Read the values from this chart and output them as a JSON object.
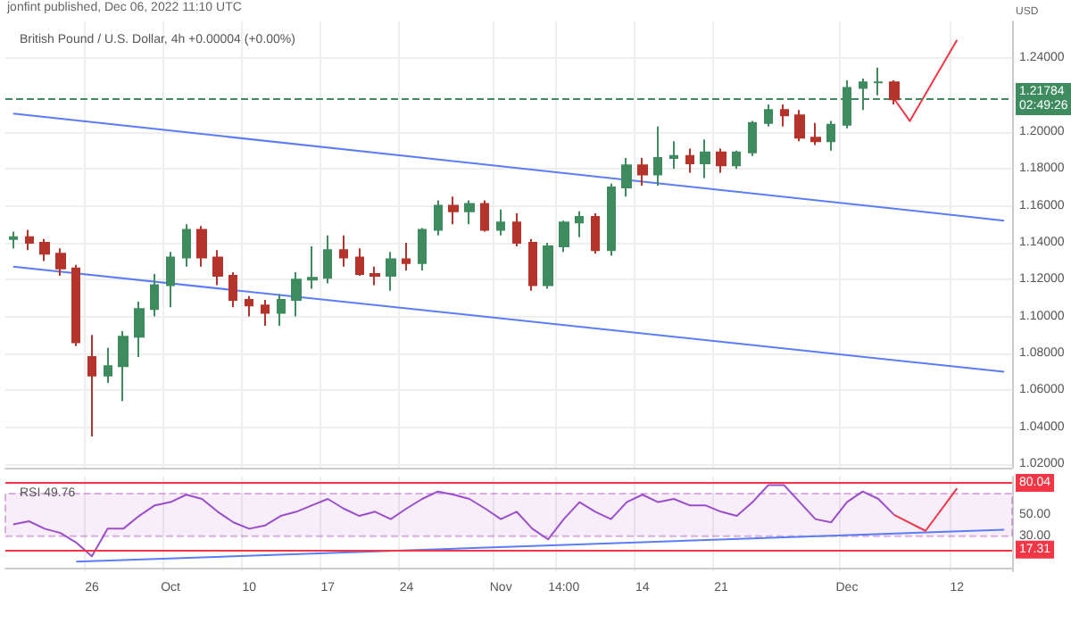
{
  "chart_data": [
    {
      "type": "candlestick",
      "title": "British Pound / U.S. Dollar, 4h +0.00004 (+0.00%)",
      "annotations": [
        "jonfint published, Dec 06, 2022 11:10 UTC"
      ],
      "ylabel": "USD",
      "categories": [
        null,
        null,
        null,
        null,
        null,
        null,
        null,
        null,
        null,
        null,
        null,
        null,
        null,
        null,
        null,
        null,
        null,
        null,
        null,
        null,
        null,
        null,
        null,
        null,
        null,
        null,
        null,
        null,
        null,
        null,
        null,
        null,
        null,
        null,
        null,
        null,
        null,
        null,
        null,
        null,
        null,
        null,
        null,
        null,
        null,
        null,
        null,
        null,
        null,
        null,
        null,
        null,
        null,
        null,
        null,
        null,
        null,
        null,
        null,
        null,
        null,
        null,
        null,
        null
      ],
      "ohlc": [
        [
          1.142,
          1.146,
          1.137,
          1.143
        ],
        [
          1.143,
          1.147,
          1.136,
          1.14
        ],
        [
          1.14,
          1.142,
          1.13,
          1.134
        ],
        [
          1.134,
          1.137,
          1.122,
          1.126
        ],
        [
          1.126,
          1.128,
          1.084,
          1.086
        ],
        [
          1.078,
          1.09,
          1.035,
          1.068
        ],
        [
          1.068,
          1.083,
          1.064,
          1.073
        ],
        [
          1.073,
          1.092,
          1.054,
          1.089
        ],
        [
          1.089,
          1.108,
          1.078,
          1.104
        ],
        [
          1.104,
          1.123,
          1.1,
          1.117
        ],
        [
          1.117,
          1.135,
          1.105,
          1.132
        ],
        [
          1.132,
          1.15,
          1.127,
          1.147
        ],
        [
          1.147,
          1.149,
          1.127,
          1.132
        ],
        [
          1.132,
          1.136,
          1.117,
          1.122
        ],
        [
          1.122,
          1.124,
          1.105,
          1.109
        ],
        [
          1.109,
          1.111,
          1.1,
          1.106
        ],
        [
          1.106,
          1.109,
          1.095,
          1.102
        ],
        [
          1.102,
          1.112,
          1.095,
          1.109
        ],
        [
          1.109,
          1.124,
          1.1,
          1.12
        ],
        [
          1.12,
          1.138,
          1.115,
          1.121
        ],
        [
          1.121,
          1.144,
          1.118,
          1.136
        ],
        [
          1.136,
          1.144,
          1.127,
          1.132
        ],
        [
          1.132,
          1.137,
          1.122,
          1.123
        ],
        [
          1.123,
          1.127,
          1.117,
          1.122
        ],
        [
          1.122,
          1.135,
          1.114,
          1.131
        ],
        [
          1.131,
          1.14,
          1.125,
          1.129
        ],
        [
          1.129,
          1.148,
          1.125,
          1.147
        ],
        [
          1.147,
          1.163,
          1.144,
          1.16
        ],
        [
          1.16,
          1.165,
          1.15,
          1.157
        ],
        [
          1.157,
          1.163,
          1.15,
          1.161
        ],
        [
          1.161,
          1.163,
          1.146,
          1.147
        ],
        [
          1.147,
          1.158,
          1.144,
          1.151
        ],
        [
          1.151,
          1.156,
          1.138,
          1.14
        ],
        [
          1.14,
          1.142,
          1.114,
          1.117
        ],
        [
          1.117,
          1.14,
          1.115,
          1.138
        ],
        [
          1.138,
          1.152,
          1.135,
          1.151
        ],
        [
          1.151,
          1.157,
          1.143,
          1.154
        ],
        [
          1.154,
          1.156,
          1.134,
          1.136
        ],
        [
          1.136,
          1.172,
          1.133,
          1.17
        ],
        [
          1.17,
          1.186,
          1.165,
          1.182
        ],
        [
          1.182,
          1.186,
          1.171,
          1.177
        ],
        [
          1.177,
          1.203,
          1.171,
          1.186
        ],
        [
          1.186,
          1.195,
          1.18,
          1.187
        ],
        [
          1.187,
          1.191,
          1.178,
          1.183
        ],
        [
          1.183,
          1.196,
          1.175,
          1.189
        ],
        [
          1.189,
          1.191,
          1.178,
          1.182
        ],
        [
          1.182,
          1.19,
          1.18,
          1.189
        ],
        [
          1.189,
          1.206,
          1.187,
          1.205
        ],
        [
          1.205,
          1.215,
          1.203,
          1.212
        ],
        [
          1.212,
          1.215,
          1.203,
          1.209
        ],
        [
          1.209,
          1.212,
          1.195,
          1.197
        ],
        [
          1.197,
          1.205,
          1.193,
          1.195
        ],
        [
          1.195,
          1.206,
          1.19,
          1.204
        ],
        [
          1.204,
          1.228,
          1.202,
          1.224
        ],
        [
          1.224,
          1.229,
          1.212,
          1.227
        ],
        [
          1.227,
          1.235,
          1.22,
          1.227
        ],
        [
          1.227,
          1.228,
          1.215,
          1.2178
        ],
        null,
        null,
        null,
        null,
        null,
        null,
        null
      ],
      "colors": [
        "#3d8b5f",
        "#b4342b",
        "#b4342b",
        "#b4342b",
        "#b4342b",
        "#b4342b",
        "#3d8b5f",
        "#3d8b5f",
        "#3d8b5f",
        "#3d8b5f",
        "#3d8b5f",
        "#3d8b5f",
        "#b4342b",
        "#b4342b",
        "#b4342b",
        "#b4342b",
        "#b4342b",
        "#3d8b5f",
        "#3d8b5f",
        "#3d8b5f",
        "#3d8b5f",
        "#b4342b",
        "#b4342b",
        "#b4342b",
        "#3d8b5f",
        "#b4342b",
        "#3d8b5f",
        "#3d8b5f",
        "#b4342b",
        "#3d8b5f",
        "#b4342b",
        "#3d8b5f",
        "#b4342b",
        "#b4342b",
        "#3d8b5f",
        "#3d8b5f",
        "#3d8b5f",
        "#b4342b",
        "#3d8b5f",
        "#3d8b5f",
        "#b4342b",
        "#3d8b5f",
        "#3d8b5f",
        "#b4342b",
        "#3d8b5f",
        "#b4342b",
        "#3d8b5f",
        "#3d8b5f",
        "#3d8b5f",
        "#b4342b",
        "#b4342b",
        "#b4342b",
        "#3d8b5f",
        "#3d8b5f",
        "#3d8b5f",
        "#3d8b5f",
        "#b4342b",
        null,
        null,
        null,
        null,
        null,
        null,
        null
      ],
      "series": [
        {
          "type": "line",
          "color": "#5b7cf7",
          "values": [
            1.21,
            null,
            null,
            null,
            null,
            null,
            null,
            null,
            null,
            null,
            null,
            null,
            null,
            null,
            null,
            null,
            null,
            null,
            null,
            null,
            null,
            null,
            null,
            null,
            null,
            null,
            null,
            null,
            null,
            null,
            null,
            null,
            null,
            null,
            null,
            null,
            null,
            null,
            null,
            null,
            null,
            null,
            null,
            null,
            null,
            null,
            null,
            null,
            null,
            null,
            null,
            null,
            null,
            null,
            null,
            null,
            null,
            null,
            null,
            null,
            null,
            null,
            null,
            1.152
          ]
        },
        {
          "type": "line",
          "color": "#5b7cf7",
          "values": [
            1.127,
            null,
            null,
            null,
            null,
            null,
            null,
            null,
            null,
            null,
            null,
            null,
            null,
            null,
            null,
            null,
            null,
            null,
            null,
            null,
            null,
            null,
            null,
            null,
            null,
            null,
            null,
            null,
            null,
            null,
            null,
            null,
            null,
            null,
            null,
            null,
            null,
            null,
            null,
            null,
            null,
            null,
            null,
            null,
            null,
            null,
            null,
            null,
            null,
            null,
            null,
            null,
            null,
            null,
            null,
            null,
            null,
            null,
            null,
            null,
            null,
            null,
            null,
            1.07
          ]
        },
        {
          "type": "line",
          "color": "#f23645",
          "values": [
            null,
            null,
            null,
            null,
            null,
            null,
            null,
            null,
            null,
            null,
            null,
            null,
            null,
            null,
            null,
            null,
            null,
            null,
            null,
            null,
            null,
            null,
            null,
            null,
            null,
            null,
            null,
            null,
            null,
            null,
            null,
            null,
            null,
            null,
            null,
            null,
            null,
            null,
            null,
            null,
            null,
            null,
            null,
            null,
            null,
            null,
            null,
            null,
            null,
            null,
            null,
            null,
            null,
            null,
            null,
            null,
            1.218,
            1.206,
            null,
            null,
            1.25,
            null,
            null,
            null
          ]
        }
      ],
      "ylim": [
        1.018,
        1.26
      ],
      "yticks": [
        {
          "value": 1.02,
          "label": "1.02000"
        },
        {
          "value": 1.04,
          "label": "1.04000"
        },
        {
          "value": 1.06,
          "label": "1.06000"
        },
        {
          "value": 1.08,
          "label": "1.08000"
        },
        {
          "value": 1.1,
          "label": "1.10000"
        },
        {
          "value": 1.12,
          "label": "1.12000"
        },
        {
          "value": 1.14,
          "label": "1.14000"
        },
        {
          "value": 1.16,
          "label": "1.16000"
        },
        {
          "value": 1.18,
          "label": "1.18000"
        },
        {
          "value": 1.2,
          "label": "1.20000"
        },
        {
          "value": 1.24,
          "label": "1.24000"
        }
      ],
      "ref_lines": [
        {
          "axis": "y",
          "value": 1.21784,
          "label": "1.21784\n02:49:26",
          "color": "#3d8b5f",
          "line_style": "dashed"
        }
      ],
      "grid": true,
      "tick_labels": "y",
      "marker": "none",
      "line_style": "solid"
    },
    {
      "type": "line",
      "title": "RSI 49.76",
      "categories": [
        null,
        null,
        null,
        null,
        null,
        "26",
        null,
        null,
        null,
        null,
        "Oct",
        null,
        null,
        null,
        null,
        "10",
        null,
        null,
        null,
        null,
        "17",
        null,
        null,
        null,
        null,
        "24",
        null,
        null,
        null,
        null,
        null,
        "Nov",
        null,
        null,
        null,
        "14:00",
        null,
        null,
        null,
        null,
        "14",
        null,
        null,
        null,
        null,
        "21",
        null,
        null,
        null,
        null,
        null,
        null,
        null,
        "Dec",
        null,
        null,
        null,
        null,
        null,
        null,
        "12",
        null,
        null,
        null
      ],
      "series": [
        {
          "color": "#9c4dcc",
          "values": [
            41,
            44,
            37,
            33,
            24,
            11,
            37,
            37,
            49,
            59,
            62,
            69,
            65,
            53,
            43,
            37,
            40,
            49,
            53,
            59,
            65,
            56,
            49,
            53,
            46,
            56,
            65,
            72,
            69,
            65,
            56,
            46,
            53,
            37,
            27,
            46,
            62,
            53,
            46,
            62,
            69,
            62,
            65,
            59,
            59,
            53,
            49,
            62,
            78,
            78,
            62,
            46,
            43,
            62,
            72,
            65,
            50,
            null,
            null,
            null,
            null,
            null,
            null,
            null
          ]
        },
        {
          "color": "#5b7cf7",
          "values": [
            null,
            null,
            null,
            null,
            6,
            null,
            null,
            null,
            null,
            null,
            null,
            null,
            null,
            null,
            null,
            null,
            null,
            null,
            null,
            null,
            null,
            null,
            null,
            null,
            null,
            null,
            null,
            null,
            null,
            null,
            null,
            null,
            null,
            null,
            null,
            null,
            null,
            null,
            null,
            null,
            null,
            null,
            null,
            null,
            null,
            null,
            null,
            null,
            null,
            null,
            null,
            null,
            null,
            null,
            null,
            null,
            null,
            null,
            null,
            null,
            null,
            null,
            null,
            36
          ]
        },
        {
          "color": "#f23645",
          "values": [
            null,
            null,
            null,
            null,
            null,
            null,
            null,
            null,
            null,
            null,
            null,
            null,
            null,
            null,
            null,
            null,
            null,
            null,
            null,
            null,
            null,
            null,
            null,
            null,
            null,
            null,
            null,
            null,
            null,
            null,
            null,
            null,
            null,
            null,
            null,
            null,
            null,
            null,
            null,
            null,
            null,
            null,
            null,
            null,
            null,
            null,
            null,
            null,
            null,
            null,
            null,
            null,
            null,
            null,
            null,
            null,
            50,
            null,
            35,
            null,
            75,
            null,
            null,
            null
          ]
        }
      ],
      "ylim": [
        -3,
        86
      ],
      "yticks": [
        {
          "value": 30,
          "label": "30.00"
        },
        {
          "value": 50,
          "label": "50.00"
        }
      ],
      "ref_lines": [
        {
          "axis": "y",
          "value": 80.04,
          "label": "80.04",
          "color": "#f23645"
        },
        {
          "axis": "y",
          "value": 17.31,
          "label": "17.31",
          "color": "#f23645"
        }
      ],
      "bands": [
        {
          "axis": "y",
          "from": 30,
          "to": 70,
          "color": "#9c27b0"
        }
      ],
      "grid": "x",
      "marker": "none",
      "line_style": "solid"
    }
  ]
}
